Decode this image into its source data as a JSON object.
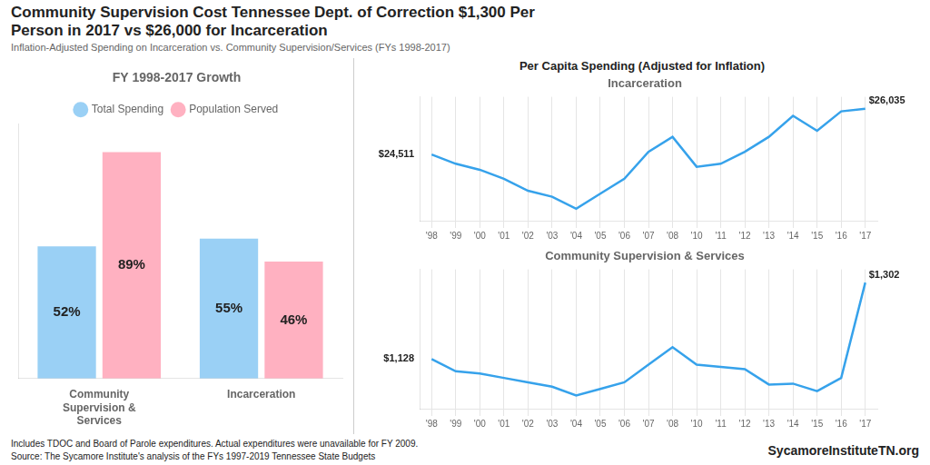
{
  "title": [
    "Community Supervision Cost Tennessee Dept. of Correction $1,300 Per",
    "Person in 2017 vs $26,000 for Incarceration"
  ],
  "subtitle": "Inflation-Adjusted  Spending on Incarceration vs. Community Supervision/Services  (FYs 1998-2017)",
  "annotations": [
    "Includes TDOC and Board of Parole expenditures.  Actual expenditures were unavailable for FY 2009.",
    "Source:  The Sycamore Institute's analysis of the FYs 1997-2019 Tennessee State Budgets",
    "SycamoreInstituteTN.org"
  ],
  "chart_data": [
    {
      "type": "bar",
      "title": "FY 1998-2017 Growth",
      "categories": [
        "Community\nSupervision &\nServices",
        "Incarceration"
      ],
      "series": [
        {
          "name": "Total Spending",
          "values": [
            52,
            55
          ],
          "value_labels": [
            "52%",
            "55%"
          ]
        },
        {
          "name": "Population Served",
          "values": [
            89,
            46
          ],
          "value_labels": [
            "89%",
            "46%"
          ]
        }
      ],
      "ylim": [
        0,
        100
      ],
      "grid": false,
      "legend": "top",
      "data_labels": true,
      "tick_labels": "x"
    },
    {
      "type": "line",
      "title": "Incarceration",
      "subtitle": "Per Capita Spending (Adjusted for Inflation)",
      "categories": [
        "'98",
        "'99",
        "'00",
        "'01",
        "'02",
        "'03",
        "'04",
        "'05",
        "'06",
        "'07",
        "'08",
        "'10",
        "'11",
        "'12",
        "'13",
        "'14",
        "'15",
        "'16",
        "'17"
      ],
      "values": [
        24511,
        24200,
        24000,
        23700,
        23300,
        23100,
        22700,
        23200,
        23700,
        24600,
        25100,
        24100,
        24200,
        24600,
        25100,
        25800,
        25300,
        25950,
        26035
      ],
      "ylim": [
        22300,
        26435
      ],
      "grid": "x",
      "tick_labels": "x",
      "annotations": [
        {
          "text": "$24,511",
          "x": "'98",
          "y": 24511
        },
        {
          "text": "$26,035",
          "x": "'17",
          "y": 26035
        }
      ]
    },
    {
      "type": "line",
      "title": "Community Supervision & Services",
      "categories": [
        "'98",
        "'99",
        "'00",
        "'01",
        "'02",
        "'03",
        "'04",
        "'05",
        "'06",
        "'07",
        "'08",
        "'10",
        "'11",
        "'12",
        "'13",
        "'14",
        "'15",
        "'16",
        "'17"
      ],
      "values": [
        1128,
        1100,
        1095,
        1085,
        1075,
        1065,
        1045,
        1060,
        1075,
        1115,
        1155,
        1115,
        1110,
        1105,
        1070,
        1072,
        1055,
        1085,
        1302
      ],
      "ylim": [
        1015,
        1332
      ],
      "grid": "x",
      "tick_labels": "x",
      "annotations": [
        {
          "text": "$1,128",
          "x": "'98",
          "y": 1128
        },
        {
          "text": "$1,302",
          "x": "'17",
          "y": 1302
        }
      ]
    }
  ]
}
